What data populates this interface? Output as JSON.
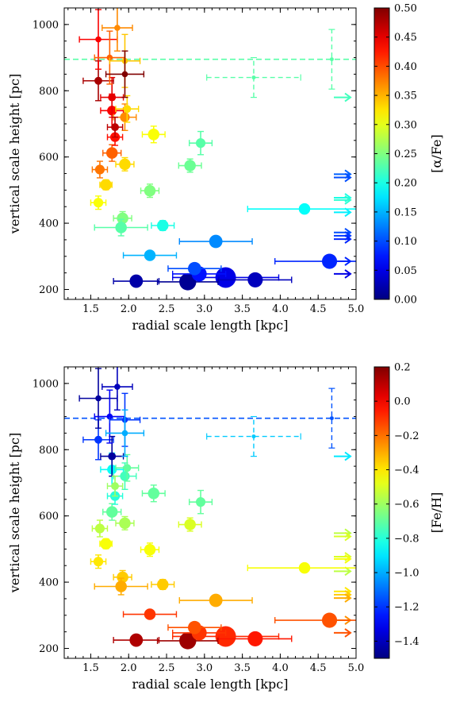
{
  "chart_data": [
    {
      "type": "scatter",
      "title": "",
      "xlabel": "radial scale length [kpc]",
      "ylabel": "vertical scale height [pc]",
      "xlim": [
        1.15,
        5.0
      ],
      "ylim": [
        170,
        1050
      ],
      "xticks": [
        "1.5",
        "2.0",
        "2.5",
        "3.0",
        "3.5",
        "4.0",
        "4.5",
        "5.0"
      ],
      "yticks": [
        "200",
        "400",
        "600",
        "800",
        "1000"
      ],
      "grid": false,
      "colorbar": {
        "label": "[α/Fe]",
        "range": [
          0.0,
          0.5
        ],
        "ticks": [
          "0.00",
          "0.05",
          "0.10",
          "0.15",
          "0.20",
          "0.25",
          "0.30",
          "0.35",
          "0.40",
          "0.45",
          "0.50"
        ],
        "colormap": "jet"
      },
      "reference_line": {
        "y": 895,
        "color_value": 0.23
      },
      "points": [
        {
          "x": 1.6,
          "y": 955,
          "c": 0.44,
          "s": 2,
          "xerr": 0.25,
          "yerr": 90
        },
        {
          "x": 1.75,
          "y": 900,
          "c": 0.39,
          "s": 2,
          "xerr": 0.2,
          "yerr": 80
        },
        {
          "x": 1.85,
          "y": 990,
          "c": 0.37,
          "s": 2,
          "xerr": 0.2,
          "yerr": 70
        },
        {
          "x": 1.95,
          "y": 890,
          "c": 0.34,
          "s": 2,
          "xerr": 0.2,
          "yerr": 80
        },
        {
          "x": 1.6,
          "y": 830,
          "c": 0.48,
          "s": 3,
          "xerr": 0.2,
          "yerr": 60
        },
        {
          "x": 1.95,
          "y": 850,
          "c": 0.5,
          "s": 2,
          "xerr": 0.25,
          "yerr": 70
        },
        {
          "x": 1.78,
          "y": 780,
          "c": 0.45,
          "s": 3,
          "xerr": 0.15,
          "yerr": 60
        },
        {
          "x": 1.78,
          "y": 740,
          "c": 0.44,
          "s": 4,
          "xerr": 0.15,
          "yerr": 50
        },
        {
          "x": 1.98,
          "y": 745,
          "c": 0.33,
          "s": 3,
          "xerr": 0.15,
          "yerr": 40
        },
        {
          "x": 1.95,
          "y": 720,
          "c": 0.37,
          "s": 4,
          "xerr": 0.15,
          "yerr": 40
        },
        {
          "x": 1.82,
          "y": 690,
          "c": 0.47,
          "s": 3,
          "xerr": 0.1,
          "yerr": 30
        },
        {
          "x": 1.82,
          "y": 660,
          "c": 0.43,
          "s": 4,
          "xerr": 0.1,
          "yerr": 25
        },
        {
          "x": 2.33,
          "y": 668,
          "c": 0.31,
          "s": 5,
          "xerr": 0.15,
          "yerr": 25
        },
        {
          "x": 2.95,
          "y": 642,
          "c": 0.23,
          "s": 4,
          "xerr": 0.15,
          "yerr": 35
        },
        {
          "x": 1.78,
          "y": 612,
          "c": 0.39,
          "s": 5,
          "xerr": 0.12,
          "yerr": 25
        },
        {
          "x": 1.62,
          "y": 562,
          "c": 0.38,
          "s": 4,
          "xerr": 0.1,
          "yerr": 25
        },
        {
          "x": 1.95,
          "y": 578,
          "c": 0.33,
          "s": 5,
          "xerr": 0.12,
          "yerr": 20
        },
        {
          "x": 2.81,
          "y": 574,
          "c": 0.24,
          "s": 5,
          "xerr": 0.15,
          "yerr": 20
        },
        {
          "x": 1.7,
          "y": 516,
          "c": 0.33,
          "s": 5,
          "xerr": 0.08,
          "yerr": 15
        },
        {
          "x": 2.28,
          "y": 498,
          "c": 0.25,
          "s": 5,
          "xerr": 0.12,
          "yerr": 20
        },
        {
          "x": 1.6,
          "y": 462,
          "c": 0.31,
          "s": 4,
          "xerr": 0.1,
          "yerr": 20
        },
        {
          "x": 4.32,
          "y": 443,
          "c": 0.19,
          "s": 5,
          "xerr": 0.75,
          "yerr": 10
        },
        {
          "x": 1.92,
          "y": 415,
          "c": 0.25,
          "s": 5,
          "xerr": 0.12,
          "yerr": 20
        },
        {
          "x": 1.9,
          "y": 387,
          "c": 0.23,
          "s": 5,
          "xerr": 0.35,
          "yerr": 25
        },
        {
          "x": 2.45,
          "y": 393,
          "c": 0.2,
          "s": 5,
          "xerr": 0.15,
          "yerr": 15
        },
        {
          "x": 3.15,
          "y": 345,
          "c": 0.13,
          "s": 6,
          "xerr": 0.48,
          "yerr": 12
        },
        {
          "x": 2.28,
          "y": 303,
          "c": 0.15,
          "s": 5,
          "xerr": 0.35,
          "yerr": 10
        },
        {
          "x": 2.87,
          "y": 263,
          "c": 0.1,
          "s": 6,
          "xerr": 0.35,
          "yerr": 10
        },
        {
          "x": 4.65,
          "y": 285,
          "c": 0.08,
          "s": 7,
          "xerr": 0.72,
          "yerr": 10
        },
        {
          "x": 2.93,
          "y": 247,
          "c": 0.07,
          "s": 7,
          "xerr": 0.35,
          "yerr": 10
        },
        {
          "x": 3.28,
          "y": 236,
          "c": 0.05,
          "s": 10,
          "xerr": 0.7,
          "yerr": 10
        },
        {
          "x": 2.1,
          "y": 225,
          "c": 0.02,
          "s": 6,
          "xerr": 0.3,
          "yerr": 10
        },
        {
          "x": 2.78,
          "y": 223,
          "c": 0.01,
          "s": 8,
          "xerr": 0.4,
          "yerr": 10
        },
        {
          "x": 3.67,
          "y": 229,
          "c": 0.03,
          "s": 7,
          "xerr": 0.48,
          "yerr": 10
        }
      ],
      "dashed_points": [
        {
          "x": 3.65,
          "y": 840,
          "c": 0.23,
          "xerr": 0.62,
          "yerr": 60
        },
        {
          "x": 4.68,
          "y": 895,
          "c": 0.23,
          "xerr": 0.0,
          "yerr": 90
        }
      ],
      "arrows": [
        {
          "y": 780,
          "c": 0.22
        },
        {
          "y": 548,
          "c": 0.11
        },
        {
          "y": 538,
          "c": 0.1
        },
        {
          "y": 477,
          "c": 0.2
        },
        {
          "y": 470,
          "c": 0.21
        },
        {
          "y": 433,
          "c": 0.18
        },
        {
          "y": 372,
          "c": 0.1
        },
        {
          "y": 362,
          "c": 0.09
        },
        {
          "y": 352,
          "c": 0.08
        },
        {
          "y": 285,
          "c": 0.08
        },
        {
          "y": 247,
          "c": 0.05
        }
      ]
    },
    {
      "type": "scatter",
      "title": "",
      "xlabel": "radial scale length [kpc]",
      "ylabel": "vertical scale height [pc]",
      "xlim": [
        1.15,
        5.0
      ],
      "ylim": [
        170,
        1050
      ],
      "xticks": [
        "1.5",
        "2.0",
        "2.5",
        "3.0",
        "3.5",
        "4.0",
        "4.5",
        "5.0"
      ],
      "yticks": [
        "200",
        "400",
        "600",
        "800",
        "1000"
      ],
      "grid": false,
      "colorbar": {
        "label": "[Fe/H]",
        "range": [
          -1.5,
          0.2
        ],
        "ticks": [
          "0.2",
          "0.0",
          "−0.2",
          "−0.4",
          "−0.6",
          "−0.8",
          "−1.0",
          "−1.2",
          "−1.4"
        ],
        "tick_values": [
          0.2,
          0.0,
          -0.2,
          -0.4,
          -0.6,
          -0.8,
          -1.0,
          -1.2,
          -1.4
        ],
        "colormap": "jet"
      },
      "reference_line": {
        "y": 895,
        "color_value": -1.15
      },
      "points": [
        {
          "x": 1.6,
          "y": 955,
          "c": -1.45,
          "s": 2,
          "xerr": 0.25,
          "yerr": 90
        },
        {
          "x": 1.75,
          "y": 900,
          "c": -1.3,
          "s": 2,
          "xerr": 0.2,
          "yerr": 80
        },
        {
          "x": 1.85,
          "y": 990,
          "c": -1.4,
          "s": 2,
          "xerr": 0.2,
          "yerr": 70
        },
        {
          "x": 1.95,
          "y": 890,
          "c": -1.2,
          "s": 2,
          "xerr": 0.2,
          "yerr": 80
        },
        {
          "x": 1.6,
          "y": 830,
          "c": -1.2,
          "s": 3,
          "xerr": 0.2,
          "yerr": 60
        },
        {
          "x": 1.95,
          "y": 850,
          "c": -1.0,
          "s": 2,
          "xerr": 0.25,
          "yerr": 70
        },
        {
          "x": 1.78,
          "y": 780,
          "c": -1.45,
          "s": 3,
          "xerr": 0.15,
          "yerr": 60
        },
        {
          "x": 1.78,
          "y": 740,
          "c": -0.85,
          "s": 4,
          "xerr": 0.15,
          "yerr": 50
        },
        {
          "x": 1.98,
          "y": 745,
          "c": -0.7,
          "s": 3,
          "xerr": 0.15,
          "yerr": 40
        },
        {
          "x": 1.95,
          "y": 720,
          "c": -0.75,
          "s": 4,
          "xerr": 0.15,
          "yerr": 40
        },
        {
          "x": 1.82,
          "y": 690,
          "c": -0.6,
          "s": 3,
          "xerr": 0.1,
          "yerr": 30
        },
        {
          "x": 1.82,
          "y": 660,
          "c": -0.8,
          "s": 4,
          "xerr": 0.1,
          "yerr": 25
        },
        {
          "x": 2.33,
          "y": 668,
          "c": -0.7,
          "s": 5,
          "xerr": 0.15,
          "yerr": 25
        },
        {
          "x": 2.95,
          "y": 642,
          "c": -0.7,
          "s": 4,
          "xerr": 0.15,
          "yerr": 35
        },
        {
          "x": 1.78,
          "y": 612,
          "c": -0.7,
          "s": 5,
          "xerr": 0.12,
          "yerr": 25
        },
        {
          "x": 1.62,
          "y": 562,
          "c": -0.55,
          "s": 4,
          "xerr": 0.1,
          "yerr": 25
        },
        {
          "x": 1.95,
          "y": 578,
          "c": -0.58,
          "s": 5,
          "xerr": 0.12,
          "yerr": 20
        },
        {
          "x": 2.81,
          "y": 574,
          "c": -0.5,
          "s": 5,
          "xerr": 0.15,
          "yerr": 20
        },
        {
          "x": 1.7,
          "y": 516,
          "c": -0.45,
          "s": 5,
          "xerr": 0.08,
          "yerr": 15
        },
        {
          "x": 2.28,
          "y": 498,
          "c": -0.45,
          "s": 5,
          "xerr": 0.12,
          "yerr": 20
        },
        {
          "x": 1.6,
          "y": 462,
          "c": -0.4,
          "s": 4,
          "xerr": 0.1,
          "yerr": 20
        },
        {
          "x": 4.32,
          "y": 443,
          "c": -0.45,
          "s": 5,
          "xerr": 0.75,
          "yerr": 10
        },
        {
          "x": 1.92,
          "y": 415,
          "c": -0.35,
          "s": 5,
          "xerr": 0.12,
          "yerr": 20
        },
        {
          "x": 1.9,
          "y": 387,
          "c": -0.3,
          "s": 5,
          "xerr": 0.35,
          "yerr": 25
        },
        {
          "x": 2.45,
          "y": 393,
          "c": -0.35,
          "s": 5,
          "xerr": 0.15,
          "yerr": 15
        },
        {
          "x": 3.15,
          "y": 345,
          "c": -0.3,
          "s": 6,
          "xerr": 0.48,
          "yerr": 12
        },
        {
          "x": 2.28,
          "y": 303,
          "c": -0.1,
          "s": 5,
          "xerr": 0.35,
          "yerr": 10
        },
        {
          "x": 2.87,
          "y": 263,
          "c": -0.15,
          "s": 6,
          "xerr": 0.35,
          "yerr": 10
        },
        {
          "x": 4.65,
          "y": 285,
          "c": -0.15,
          "s": 7,
          "xerr": 0.72,
          "yerr": 10
        },
        {
          "x": 2.93,
          "y": 247,
          "c": -0.1,
          "s": 7,
          "xerr": 0.35,
          "yerr": 10
        },
        {
          "x": 3.28,
          "y": 236,
          "c": -0.08,
          "s": 10,
          "xerr": 0.7,
          "yerr": 10
        },
        {
          "x": 2.1,
          "y": 225,
          "c": 0.12,
          "s": 6,
          "xerr": 0.3,
          "yerr": 10
        },
        {
          "x": 2.78,
          "y": 223,
          "c": 0.15,
          "s": 8,
          "xerr": 0.4,
          "yerr": 10
        },
        {
          "x": 3.67,
          "y": 229,
          "c": -0.05,
          "s": 7,
          "xerr": 0.48,
          "yerr": 10
        }
      ],
      "dashed_points": [
        {
          "x": 3.65,
          "y": 840,
          "c": -0.95,
          "xerr": 0.62,
          "yerr": 60
        },
        {
          "x": 4.68,
          "y": 895,
          "c": -1.15,
          "xerr": 0.0,
          "yerr": 90
        }
      ],
      "arrows": [
        {
          "y": 780,
          "c": -0.9
        },
        {
          "y": 548,
          "c": -0.55
        },
        {
          "y": 538,
          "c": -0.5
        },
        {
          "y": 477,
          "c": -0.5
        },
        {
          "y": 470,
          "c": -0.45
        },
        {
          "y": 433,
          "c": -0.55
        },
        {
          "y": 372,
          "c": -0.4
        },
        {
          "y": 362,
          "c": -0.35
        },
        {
          "y": 352,
          "c": -0.3
        },
        {
          "y": 285,
          "c": -0.25
        },
        {
          "y": 247,
          "c": -0.15
        }
      ]
    }
  ]
}
